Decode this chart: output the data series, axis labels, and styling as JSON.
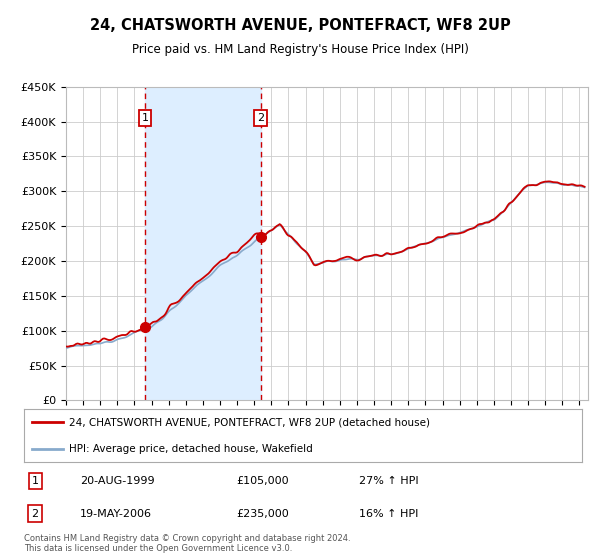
{
  "title": "24, CHATSWORTH AVENUE, PONTEFRACT, WF8 2UP",
  "subtitle": "Price paid vs. HM Land Registry's House Price Index (HPI)",
  "legend_line1": "24, CHATSWORTH AVENUE, PONTEFRACT, WF8 2UP (detached house)",
  "legend_line2": "HPI: Average price, detached house, Wakefield",
  "sale1_date": "20-AUG-1999",
  "sale1_price": 105000,
  "sale1_hpi_pct": "27% ↑ HPI",
  "sale1_label": "1",
  "sale2_date": "19-MAY-2006",
  "sale2_price": 235000,
  "sale2_hpi_pct": "16% ↑ HPI",
  "sale2_label": "2",
  "footer": "Contains HM Land Registry data © Crown copyright and database right 2024.\nThis data is licensed under the Open Government Licence v3.0.",
  "ymin": 0,
  "ymax": 450000,
  "xmin": 1995.0,
  "xmax": 2025.5,
  "line_color_red": "#cc0000",
  "line_color_blue": "#88aacc",
  "shade_color": "#ddeeff",
  "dashed_color": "#cc0000",
  "marker_box_color": "#cc0000",
  "background_color": "#ffffff",
  "grid_color": "#cccccc"
}
